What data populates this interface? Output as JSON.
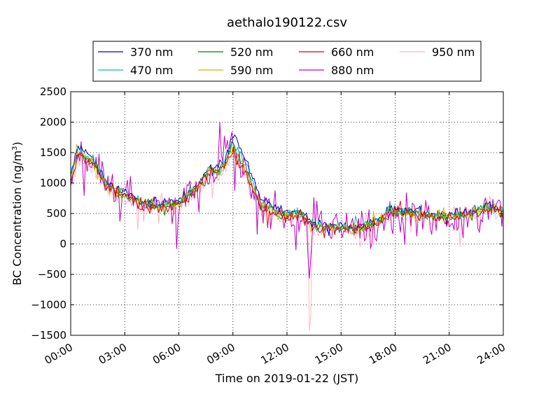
{
  "chart_data": {
    "type": "line",
    "title": "aethalo190122.csv",
    "xlabel": "Time on 2019-01-22 (JST)",
    "ylabel_main": "BC Concentration (ng/m",
    "ylabel_sup": "3",
    "ylabel_tail": ")",
    "xlim": [
      "00:00",
      "24:00"
    ],
    "xticks": [
      "00:00",
      "03:00",
      "06:00",
      "09:00",
      "12:00",
      "15:00",
      "18:00",
      "21:00",
      "24:00"
    ],
    "ylim": [
      -1500,
      2500
    ],
    "yticks": [
      "2500",
      "2000",
      "1500",
      "1000",
      "500",
      "0",
      "−500",
      "−1000",
      "−1500"
    ],
    "grid": true,
    "legend_position": "top-center",
    "series": [
      {
        "name": "370 nm",
        "color": "#0000cc",
        "amp": 0.55,
        "seed": 11,
        "anchors": [
          [
            0,
            1150
          ],
          [
            0.4,
            1600
          ],
          [
            1.2,
            1450
          ],
          [
            2,
            1000
          ],
          [
            3,
            850
          ],
          [
            4,
            700
          ],
          [
            5,
            650
          ],
          [
            6,
            700
          ],
          [
            7,
            950
          ],
          [
            7.7,
            1250
          ],
          [
            8.2,
            1250
          ],
          [
            8.6,
            1450
          ],
          [
            9,
            1850
          ],
          [
            9.4,
            1550
          ],
          [
            10,
            1200
          ],
          [
            10.5,
            750
          ],
          [
            11,
            650
          ],
          [
            11.5,
            550
          ],
          [
            12,
            500
          ],
          [
            12.7,
            550
          ],
          [
            13.3,
            350
          ],
          [
            14,
            300
          ],
          [
            15,
            300
          ],
          [
            16,
            280
          ],
          [
            16.8,
            350
          ],
          [
            17.3,
            450
          ],
          [
            17.7,
            600
          ],
          [
            18.5,
            550
          ],
          [
            19.5,
            520
          ],
          [
            20,
            500
          ],
          [
            20.8,
            480
          ],
          [
            21.5,
            500
          ],
          [
            22.5,
            560
          ],
          [
            23.2,
            650
          ],
          [
            24,
            550
          ]
        ]
      },
      {
        "name": "470 nm",
        "color": "#00bfa5",
        "amp": 0.6,
        "seed": 23,
        "anchors": [
          [
            0,
            1100
          ],
          [
            0.4,
            1550
          ],
          [
            1.2,
            1400
          ],
          [
            2,
            980
          ],
          [
            3,
            820
          ],
          [
            4,
            680
          ],
          [
            5,
            630
          ],
          [
            6,
            680
          ],
          [
            7,
            930
          ],
          [
            7.7,
            1220
          ],
          [
            8.2,
            1200
          ],
          [
            8.6,
            1380
          ],
          [
            9,
            1700
          ],
          [
            9.4,
            1450
          ],
          [
            10,
            1100
          ],
          [
            10.5,
            700
          ],
          [
            11,
            600
          ],
          [
            11.5,
            520
          ],
          [
            12,
            470
          ],
          [
            12.7,
            520
          ],
          [
            13.3,
            320
          ],
          [
            14,
            280
          ],
          [
            15,
            290
          ],
          [
            16,
            270
          ],
          [
            16.8,
            330
          ],
          [
            17.3,
            430
          ],
          [
            17.7,
            560
          ],
          [
            18.5,
            520
          ],
          [
            19.5,
            500
          ],
          [
            20,
            480
          ],
          [
            20.8,
            460
          ],
          [
            21.5,
            480
          ],
          [
            22.5,
            540
          ],
          [
            23.2,
            620
          ],
          [
            24,
            530
          ]
        ]
      },
      {
        "name": "520 nm",
        "color": "#008000",
        "amp": 0.6,
        "seed": 37,
        "anchors": [
          [
            0,
            1080
          ],
          [
            0.4,
            1520
          ],
          [
            1.2,
            1380
          ],
          [
            2,
            960
          ],
          [
            3,
            800
          ],
          [
            4,
            670
          ],
          [
            5,
            620
          ],
          [
            6,
            670
          ],
          [
            7,
            920
          ],
          [
            7.7,
            1200
          ],
          [
            8.2,
            1180
          ],
          [
            8.6,
            1350
          ],
          [
            9,
            1650
          ],
          [
            9.4,
            1400
          ],
          [
            10,
            1050
          ],
          [
            10.5,
            680
          ],
          [
            11,
            580
          ],
          [
            11.5,
            500
          ],
          [
            12,
            460
          ],
          [
            12.7,
            500
          ],
          [
            13.3,
            310
          ],
          [
            14,
            270
          ],
          [
            15,
            280
          ],
          [
            16,
            260
          ],
          [
            16.8,
            320
          ],
          [
            17.3,
            420
          ],
          [
            17.7,
            540
          ],
          [
            18.5,
            510
          ],
          [
            19.5,
            490
          ],
          [
            20,
            470
          ],
          [
            20.8,
            450
          ],
          [
            21.5,
            470
          ],
          [
            22.5,
            530
          ],
          [
            23.2,
            610
          ],
          [
            24,
            520
          ]
        ]
      },
      {
        "name": "590 nm",
        "color": "#bfbf00",
        "amp": 0.65,
        "seed": 41,
        "anchors": [
          [
            0,
            1060
          ],
          [
            0.4,
            1500
          ],
          [
            1.2,
            1360
          ],
          [
            2,
            950
          ],
          [
            3,
            790
          ],
          [
            4,
            660
          ],
          [
            5,
            610
          ],
          [
            6,
            660
          ],
          [
            7,
            910
          ],
          [
            7.7,
            1190
          ],
          [
            8.2,
            1160
          ],
          [
            8.6,
            1330
          ],
          [
            9,
            1600
          ],
          [
            9.4,
            1360
          ],
          [
            10,
            1020
          ],
          [
            10.5,
            660
          ],
          [
            11,
            570
          ],
          [
            11.5,
            490
          ],
          [
            12,
            450
          ],
          [
            12.7,
            490
          ],
          [
            13.3,
            300
          ],
          [
            14,
            260
          ],
          [
            15,
            270
          ],
          [
            16,
            250
          ],
          [
            16.8,
            310
          ],
          [
            17.3,
            410
          ],
          [
            17.7,
            530
          ],
          [
            18.5,
            500
          ],
          [
            19.5,
            480
          ],
          [
            20,
            460
          ],
          [
            20.8,
            440
          ],
          [
            21.5,
            460
          ],
          [
            22.5,
            520
          ],
          [
            23.2,
            600
          ],
          [
            24,
            510
          ]
        ]
      },
      {
        "name": "660 nm",
        "color": "#e00000",
        "amp": 0.7,
        "seed": 53,
        "anchors": [
          [
            0,
            1050
          ],
          [
            0.4,
            1480
          ],
          [
            1.2,
            1340
          ],
          [
            2,
            940
          ],
          [
            3,
            780
          ],
          [
            4,
            650
          ],
          [
            5,
            600
          ],
          [
            6,
            650
          ],
          [
            7,
            900
          ],
          [
            7.7,
            1180
          ],
          [
            8.2,
            1150
          ],
          [
            8.6,
            1320
          ],
          [
            9,
            1450
          ],
          [
            9.4,
            1300
          ],
          [
            10,
            980
          ],
          [
            10.5,
            640
          ],
          [
            11,
            560
          ],
          [
            11.5,
            480
          ],
          [
            12,
            440
          ],
          [
            12.7,
            480
          ],
          [
            13.3,
            290
          ],
          [
            14,
            250
          ],
          [
            15,
            260
          ],
          [
            16,
            240
          ],
          [
            16.8,
            300
          ],
          [
            17.3,
            400
          ],
          [
            17.7,
            520
          ],
          [
            18.5,
            490
          ],
          [
            19.5,
            470
          ],
          [
            20,
            450
          ],
          [
            20.8,
            430
          ],
          [
            21.5,
            450
          ],
          [
            22.5,
            510
          ],
          [
            23.2,
            590
          ],
          [
            24,
            500
          ]
        ]
      },
      {
        "name": "880 nm",
        "color": "#c000c0",
        "amp": 1.9,
        "seed": 67,
        "anchors": [
          [
            0,
            1050
          ],
          [
            0.4,
            1550
          ],
          [
            1.2,
            1400
          ],
          [
            2,
            950
          ],
          [
            3,
            800
          ],
          [
            4,
            650
          ],
          [
            5,
            600
          ],
          [
            6,
            650
          ],
          [
            7,
            950
          ],
          [
            7.7,
            1250
          ],
          [
            8.2,
            1300
          ],
          [
            8.6,
            1550
          ],
          [
            9,
            1700
          ],
          [
            9.4,
            1400
          ],
          [
            10,
            1050
          ],
          [
            10.5,
            650
          ],
          [
            11,
            550
          ],
          [
            11.5,
            450
          ],
          [
            12,
            400
          ],
          [
            12.7,
            450
          ],
          [
            13.3,
            250
          ],
          [
            14,
            220
          ],
          [
            15,
            230
          ],
          [
            16,
            220
          ],
          [
            16.8,
            280
          ],
          [
            17.3,
            400
          ],
          [
            17.7,
            550
          ],
          [
            18.5,
            500
          ],
          [
            19.5,
            480
          ],
          [
            20,
            460
          ],
          [
            20.8,
            440
          ],
          [
            21.5,
            470
          ],
          [
            22.5,
            530
          ],
          [
            23.2,
            600
          ],
          [
            24,
            500
          ]
        ]
      },
      {
        "name": "950 nm",
        "color": "#ffb6c1",
        "amp": 1.1,
        "seed": 79,
        "anchors": [
          [
            0,
            1000
          ],
          [
            0.4,
            1420
          ],
          [
            1.2,
            1280
          ],
          [
            2,
            900
          ],
          [
            3,
            750
          ],
          [
            4,
            620
          ],
          [
            5,
            580
          ],
          [
            6,
            620
          ],
          [
            7,
            870
          ],
          [
            7.7,
            1140
          ],
          [
            8.2,
            1100
          ],
          [
            8.6,
            1260
          ],
          [
            9,
            1380
          ],
          [
            9.4,
            1240
          ],
          [
            10,
            940
          ],
          [
            10.5,
            620
          ],
          [
            11,
            540
          ],
          [
            11.5,
            460
          ],
          [
            12,
            420
          ],
          [
            12.7,
            450
          ],
          [
            13.3,
            260
          ],
          [
            14,
            230
          ],
          [
            15,
            240
          ],
          [
            16,
            220
          ],
          [
            16.8,
            280
          ],
          [
            17.3,
            380
          ],
          [
            17.7,
            500
          ],
          [
            18.5,
            470
          ],
          [
            19.5,
            450
          ],
          [
            20,
            430
          ],
          [
            20.8,
            410
          ],
          [
            21.5,
            430
          ],
          [
            22.5,
            490
          ],
          [
            23.2,
            560
          ],
          [
            24,
            480
          ]
        ]
      }
    ]
  }
}
